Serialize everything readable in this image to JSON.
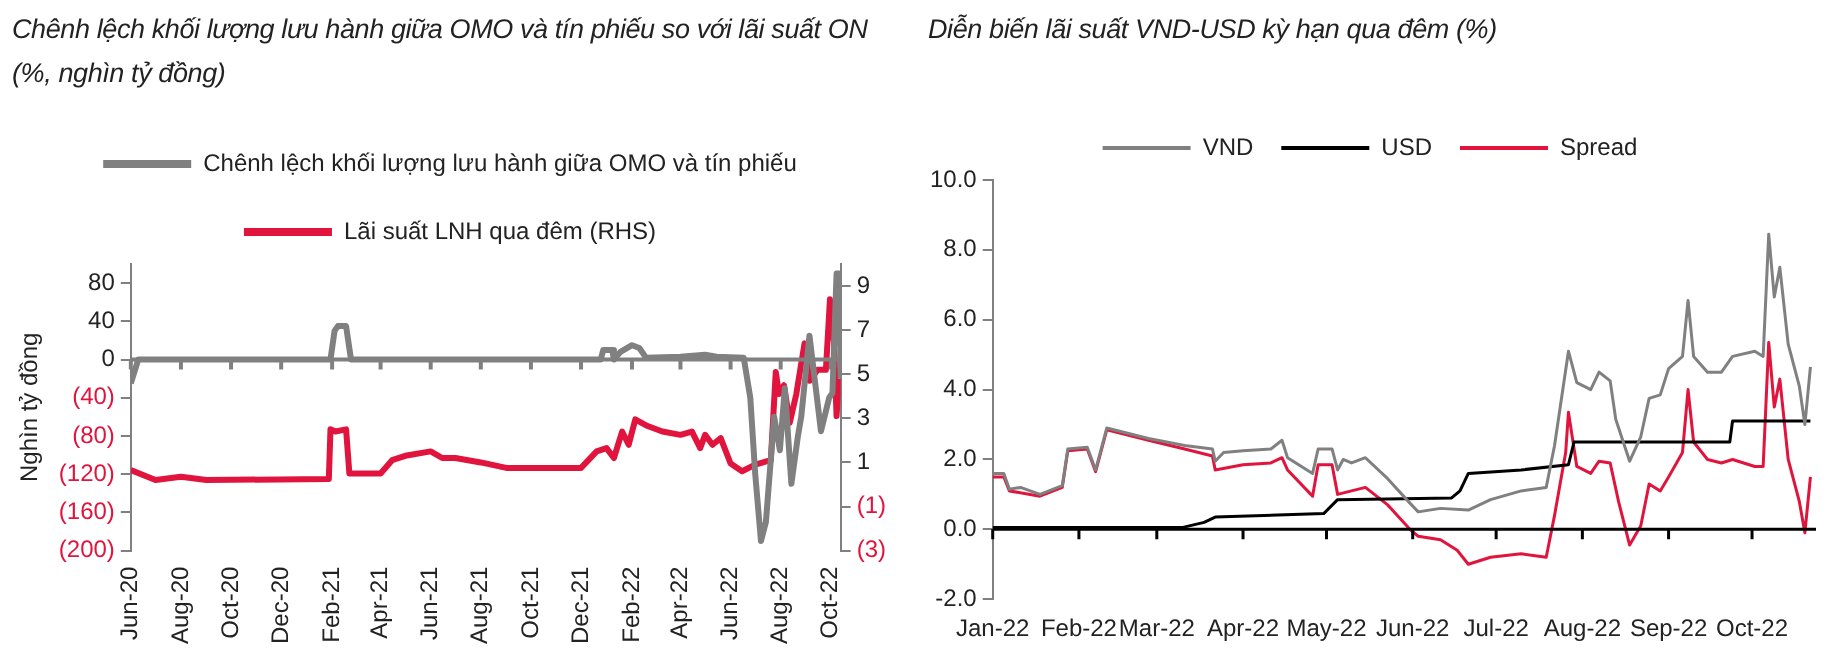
{
  "chart_data": [
    {
      "type": "line",
      "title": "Chênh lệch khối lượng lưu hành giữa OMO và tín phiếu so với lãi suất ON (%, nghìn tỷ đồng)",
      "ylabel": "Nghìn tỷ đồng",
      "legend": "top",
      "grid": false,
      "marker": "none",
      "xlim": [
        "2020-06-01",
        "2022-10-13"
      ],
      "xticks": [
        {
          "value": "2020-06-01",
          "label": "Jun-20"
        },
        {
          "value": "2020-08-01",
          "label": "Aug-20"
        },
        {
          "value": "2020-10-01",
          "label": "Oct-20"
        },
        {
          "value": "2020-12-01",
          "label": "Dec-20"
        },
        {
          "value": "2021-02-01",
          "label": "Feb-21"
        },
        {
          "value": "2021-04-01",
          "label": "Apr-21"
        },
        {
          "value": "2021-06-01",
          "label": "Jun-21"
        },
        {
          "value": "2021-08-01",
          "label": "Aug-21"
        },
        {
          "value": "2021-10-01",
          "label": "Oct-21"
        },
        {
          "value": "2021-12-01",
          "label": "Dec-21"
        },
        {
          "value": "2022-02-01",
          "label": "Feb-22"
        },
        {
          "value": "2022-04-01",
          "label": "Apr-22"
        },
        {
          "value": "2022-06-01",
          "label": "Jun-22"
        },
        {
          "value": "2022-08-01",
          "label": "Aug-22"
        },
        {
          "value": "2022-10-01",
          "label": "Oct-22"
        }
      ],
      "ylim": [
        -200,
        100
      ],
      "yticks": [
        {
          "value": -200,
          "label": "(200)"
        },
        {
          "value": -160,
          "label": "(160)"
        },
        {
          "value": -120,
          "label": "(120)"
        },
        {
          "value": -80,
          "label": "(80)"
        },
        {
          "value": -40,
          "label": "(40)"
        },
        0,
        40,
        80
      ],
      "y2lim": [
        -3,
        10
      ],
      "y2ticks": [
        {
          "value": -3,
          "label": "(3)"
        },
        {
          "value": -1,
          "label": "(1)"
        },
        1,
        3,
        5,
        7,
        9
      ],
      "ref_lines": [
        {
          "axis": "y",
          "value": 0,
          "color": "#808080"
        }
      ],
      "series": [
        {
          "name": "Chênh lệch khối lượng lưu hành giữa OMO và tín phiếu",
          "color": "#808080",
          "x": [
            "2020-06-01",
            "2020-06-10",
            "2021-01-30",
            "2021-02-04",
            "2021-02-08",
            "2021-02-18",
            "2021-02-24",
            "2021-12-25",
            "2021-12-28",
            "2022-01-08",
            "2022-01-10",
            "2022-01-18",
            "2022-02-01",
            "2022-02-10",
            "2022-02-18",
            "2022-04-01",
            "2022-05-01",
            "2022-05-15",
            "2022-06-17",
            "2022-06-25",
            "2022-07-01",
            "2022-07-08",
            "2022-07-14",
            "2022-07-24",
            "2022-07-31",
            "2022-08-06",
            "2022-08-14",
            "2022-08-22",
            "2022-08-26",
            "2022-09-05",
            "2022-09-19",
            "2022-09-29",
            "2022-10-03",
            "2022-10-08",
            "2022-10-11",
            "2022-10-13"
          ],
          "values": [
            -25,
            0,
            0,
            30,
            35,
            35,
            0,
            0,
            10,
            10,
            0,
            8,
            15,
            12,
            2,
            3,
            5,
            3,
            2,
            -40,
            -120,
            -190,
            -170,
            -60,
            -95,
            -30,
            -130,
            -80,
            -60,
            25,
            -75,
            -40,
            -35,
            90,
            90,
            -20
          ]
        },
        {
          "name": "Lãi suất LNH qua đêm (RHS)",
          "color": "#e0143c",
          "axis": "y2",
          "x": [
            "2020-06-01",
            "2020-07-01",
            "2020-08-01",
            "2020-09-01",
            "2021-01-28",
            "2021-01-30",
            "2021-02-05",
            "2021-02-18",
            "2021-02-22",
            "2021-04-01",
            "2021-04-15",
            "2021-05-01",
            "2021-06-01",
            "2021-06-15",
            "2021-07-01",
            "2021-08-01",
            "2021-09-01",
            "2021-12-01",
            "2021-12-20",
            "2022-01-01",
            "2022-01-10",
            "2022-01-20",
            "2022-01-28",
            "2022-02-05",
            "2022-02-20",
            "2022-03-10",
            "2022-04-01",
            "2022-04-15",
            "2022-04-25",
            "2022-05-01",
            "2022-05-10",
            "2022-05-20",
            "2022-06-01",
            "2022-06-15",
            "2022-07-01",
            "2022-07-20",
            "2022-07-26",
            "2022-07-30",
            "2022-08-05",
            "2022-08-12",
            "2022-08-20",
            "2022-08-30",
            "2022-09-05",
            "2022-09-15",
            "2022-09-25",
            "2022-09-30",
            "2022-10-05",
            "2022-10-08",
            "2022-10-11"
          ],
          "values": [
            0.65,
            0.2,
            0.35,
            0.2,
            0.25,
            2.5,
            2.4,
            2.5,
            0.5,
            0.5,
            1.1,
            1.3,
            1.5,
            1.2,
            1.2,
            1.0,
            0.75,
            0.75,
            1.5,
            1.65,
            1.2,
            2.4,
            1.8,
            2.95,
            2.65,
            2.4,
            2.25,
            2.4,
            1.65,
            2.25,
            1.8,
            2.1,
            0.95,
            0.6,
            0.9,
            1.1,
            5.1,
            4.1,
            4.5,
            2.8,
            4.1,
            6.4,
            4.7,
            5.2,
            5.2,
            8.4,
            6.4,
            3.1,
            4.8
          ]
        }
      ]
    },
    {
      "type": "line",
      "title": "Diễn biến lãi suất VND-USD kỳ hạn qua đêm (%)",
      "legend": "top",
      "grid": false,
      "marker": "none",
      "xlim": [
        "2022-01-01",
        "2022-10-24"
      ],
      "xticks": [
        {
          "value": "2022-01-01",
          "label": "Jan-22"
        },
        {
          "value": "2022-02-01",
          "label": "Feb-22"
        },
        {
          "value": "2022-03-01",
          "label": "Mar-22"
        },
        {
          "value": "2022-04-01",
          "label": "Apr-22"
        },
        {
          "value": "2022-05-01",
          "label": "May-22"
        },
        {
          "value": "2022-06-01",
          "label": "Jun-22"
        },
        {
          "value": "2022-07-01",
          "label": "Jul-22"
        },
        {
          "value": "2022-08-01",
          "label": "Aug-22"
        },
        {
          "value": "2022-09-01",
          "label": "Sep-22"
        },
        {
          "value": "2022-10-01",
          "label": "Oct-22"
        }
      ],
      "ylim": [
        -2,
        10
      ],
      "yticks": [
        {
          "value": -2,
          "label": "-2.0"
        },
        {
          "value": 0,
          "label": "0.0"
        },
        {
          "value": 2,
          "label": "2.0"
        },
        {
          "value": 4,
          "label": "4.0"
        },
        {
          "value": 6,
          "label": "6.0"
        },
        {
          "value": 8,
          "label": "8.0"
        },
        {
          "value": 10,
          "label": "10.0"
        }
      ],
      "ref_lines": [
        {
          "axis": "y",
          "value": 0,
          "color": "#000000"
        }
      ],
      "series": [
        {
          "name": "VND",
          "color": "#808080",
          "x": [
            "2022-01-01",
            "2022-01-05",
            "2022-01-07",
            "2022-01-11",
            "2022-01-18",
            "2022-01-26",
            "2022-01-28",
            "2022-02-04",
            "2022-02-07",
            "2022-02-11",
            "2022-02-16",
            "2022-02-26",
            "2022-03-11",
            "2022-03-21",
            "2022-03-22",
            "2022-03-25",
            "2022-04-01",
            "2022-04-11",
            "2022-04-15",
            "2022-04-17",
            "2022-04-26",
            "2022-04-28",
            "2022-05-03",
            "2022-05-05",
            "2022-05-07",
            "2022-05-10",
            "2022-05-15",
            "2022-05-23",
            "2022-05-31",
            "2022-06-03",
            "2022-06-11",
            "2022-06-21",
            "2022-06-29",
            "2022-07-10",
            "2022-07-19",
            "2022-07-22",
            "2022-07-27",
            "2022-07-30",
            "2022-08-04",
            "2022-08-07",
            "2022-08-11",
            "2022-08-13",
            "2022-08-18",
            "2022-08-22",
            "2022-08-25",
            "2022-08-29",
            "2022-09-01",
            "2022-09-06",
            "2022-09-08",
            "2022-09-10",
            "2022-09-15",
            "2022-09-20",
            "2022-09-24",
            "2022-10-02",
            "2022-10-05",
            "2022-10-07",
            "2022-10-09",
            "2022-10-11",
            "2022-10-14",
            "2022-10-18",
            "2022-10-20",
            "2022-10-22"
          ],
          "values": [
            1.6,
            1.6,
            1.15,
            1.2,
            1.0,
            1.25,
            2.3,
            2.35,
            1.7,
            2.9,
            2.8,
            2.6,
            2.4,
            2.3,
            1.95,
            2.2,
            2.25,
            2.3,
            2.55,
            2.05,
            1.6,
            2.3,
            2.3,
            1.7,
            2.0,
            1.9,
            2.05,
            1.45,
            0.75,
            0.5,
            0.6,
            0.55,
            0.85,
            1.1,
            1.2,
            2.4,
            5.1,
            4.2,
            4.0,
            4.5,
            4.25,
            3.15,
            1.95,
            2.65,
            3.75,
            3.85,
            4.6,
            4.95,
            6.55,
            4.95,
            4.5,
            4.5,
            4.95,
            5.1,
            4.95,
            8.45,
            6.65,
            7.5,
            5.3,
            4.1,
            3.0,
            4.65
          ]
        },
        {
          "name": "USD",
          "color": "#000000",
          "x": [
            "2022-01-01",
            "2022-03-10",
            "2022-03-18",
            "2022-03-22",
            "2022-04-30",
            "2022-05-05",
            "2022-06-15",
            "2022-06-18",
            "2022-06-21",
            "2022-07-10",
            "2022-07-27",
            "2022-07-29",
            "2022-09-23",
            "2022-09-24",
            "2022-10-22"
          ],
          "values": [
            0.05,
            0.05,
            0.2,
            0.35,
            0.45,
            0.85,
            0.9,
            1.1,
            1.6,
            1.7,
            1.85,
            2.5,
            2.5,
            3.1,
            3.1
          ]
        },
        {
          "name": "Spread",
          "color": "#e0143c",
          "x": [
            "2022-01-01",
            "2022-01-05",
            "2022-01-07",
            "2022-01-18",
            "2022-01-26",
            "2022-01-28",
            "2022-02-04",
            "2022-02-07",
            "2022-02-11",
            "2022-02-16",
            "2022-02-26",
            "2022-03-11",
            "2022-03-21",
            "2022-03-22",
            "2022-04-01",
            "2022-04-11",
            "2022-04-15",
            "2022-04-17",
            "2022-04-26",
            "2022-04-28",
            "2022-05-03",
            "2022-05-05",
            "2022-05-10",
            "2022-05-15",
            "2022-05-23",
            "2022-05-31",
            "2022-06-03",
            "2022-06-11",
            "2022-06-17",
            "2022-06-21",
            "2022-06-29",
            "2022-07-10",
            "2022-07-19",
            "2022-07-22",
            "2022-07-26",
            "2022-07-27",
            "2022-07-30",
            "2022-08-04",
            "2022-08-07",
            "2022-08-11",
            "2022-08-14",
            "2022-08-18",
            "2022-08-22",
            "2022-08-25",
            "2022-08-29",
            "2022-09-01",
            "2022-09-06",
            "2022-09-08",
            "2022-09-10",
            "2022-09-15",
            "2022-09-20",
            "2022-09-24",
            "2022-10-02",
            "2022-10-05",
            "2022-10-07",
            "2022-10-09",
            "2022-10-11",
            "2022-10-14",
            "2022-10-18",
            "2022-10-20",
            "2022-10-22"
          ],
          "values": [
            1.5,
            1.5,
            1.1,
            0.95,
            1.2,
            2.25,
            2.3,
            1.65,
            2.85,
            2.75,
            2.55,
            2.3,
            2.1,
            1.7,
            1.85,
            1.9,
            2.05,
            1.7,
            0.95,
            1.85,
            1.85,
            1.0,
            1.1,
            1.2,
            0.7,
            0.0,
            -0.2,
            -0.3,
            -0.6,
            -1.0,
            -0.8,
            -0.7,
            -0.8,
            0.4,
            2.2,
            3.35,
            1.8,
            1.6,
            1.95,
            1.9,
            0.8,
            -0.45,
            0.1,
            1.3,
            1.1,
            1.5,
            2.2,
            4.0,
            2.5,
            2.0,
            1.9,
            2.0,
            1.8,
            1.8,
            5.35,
            3.5,
            4.3,
            2.0,
            0.8,
            -0.1,
            1.5
          ]
        }
      ]
    }
  ]
}
